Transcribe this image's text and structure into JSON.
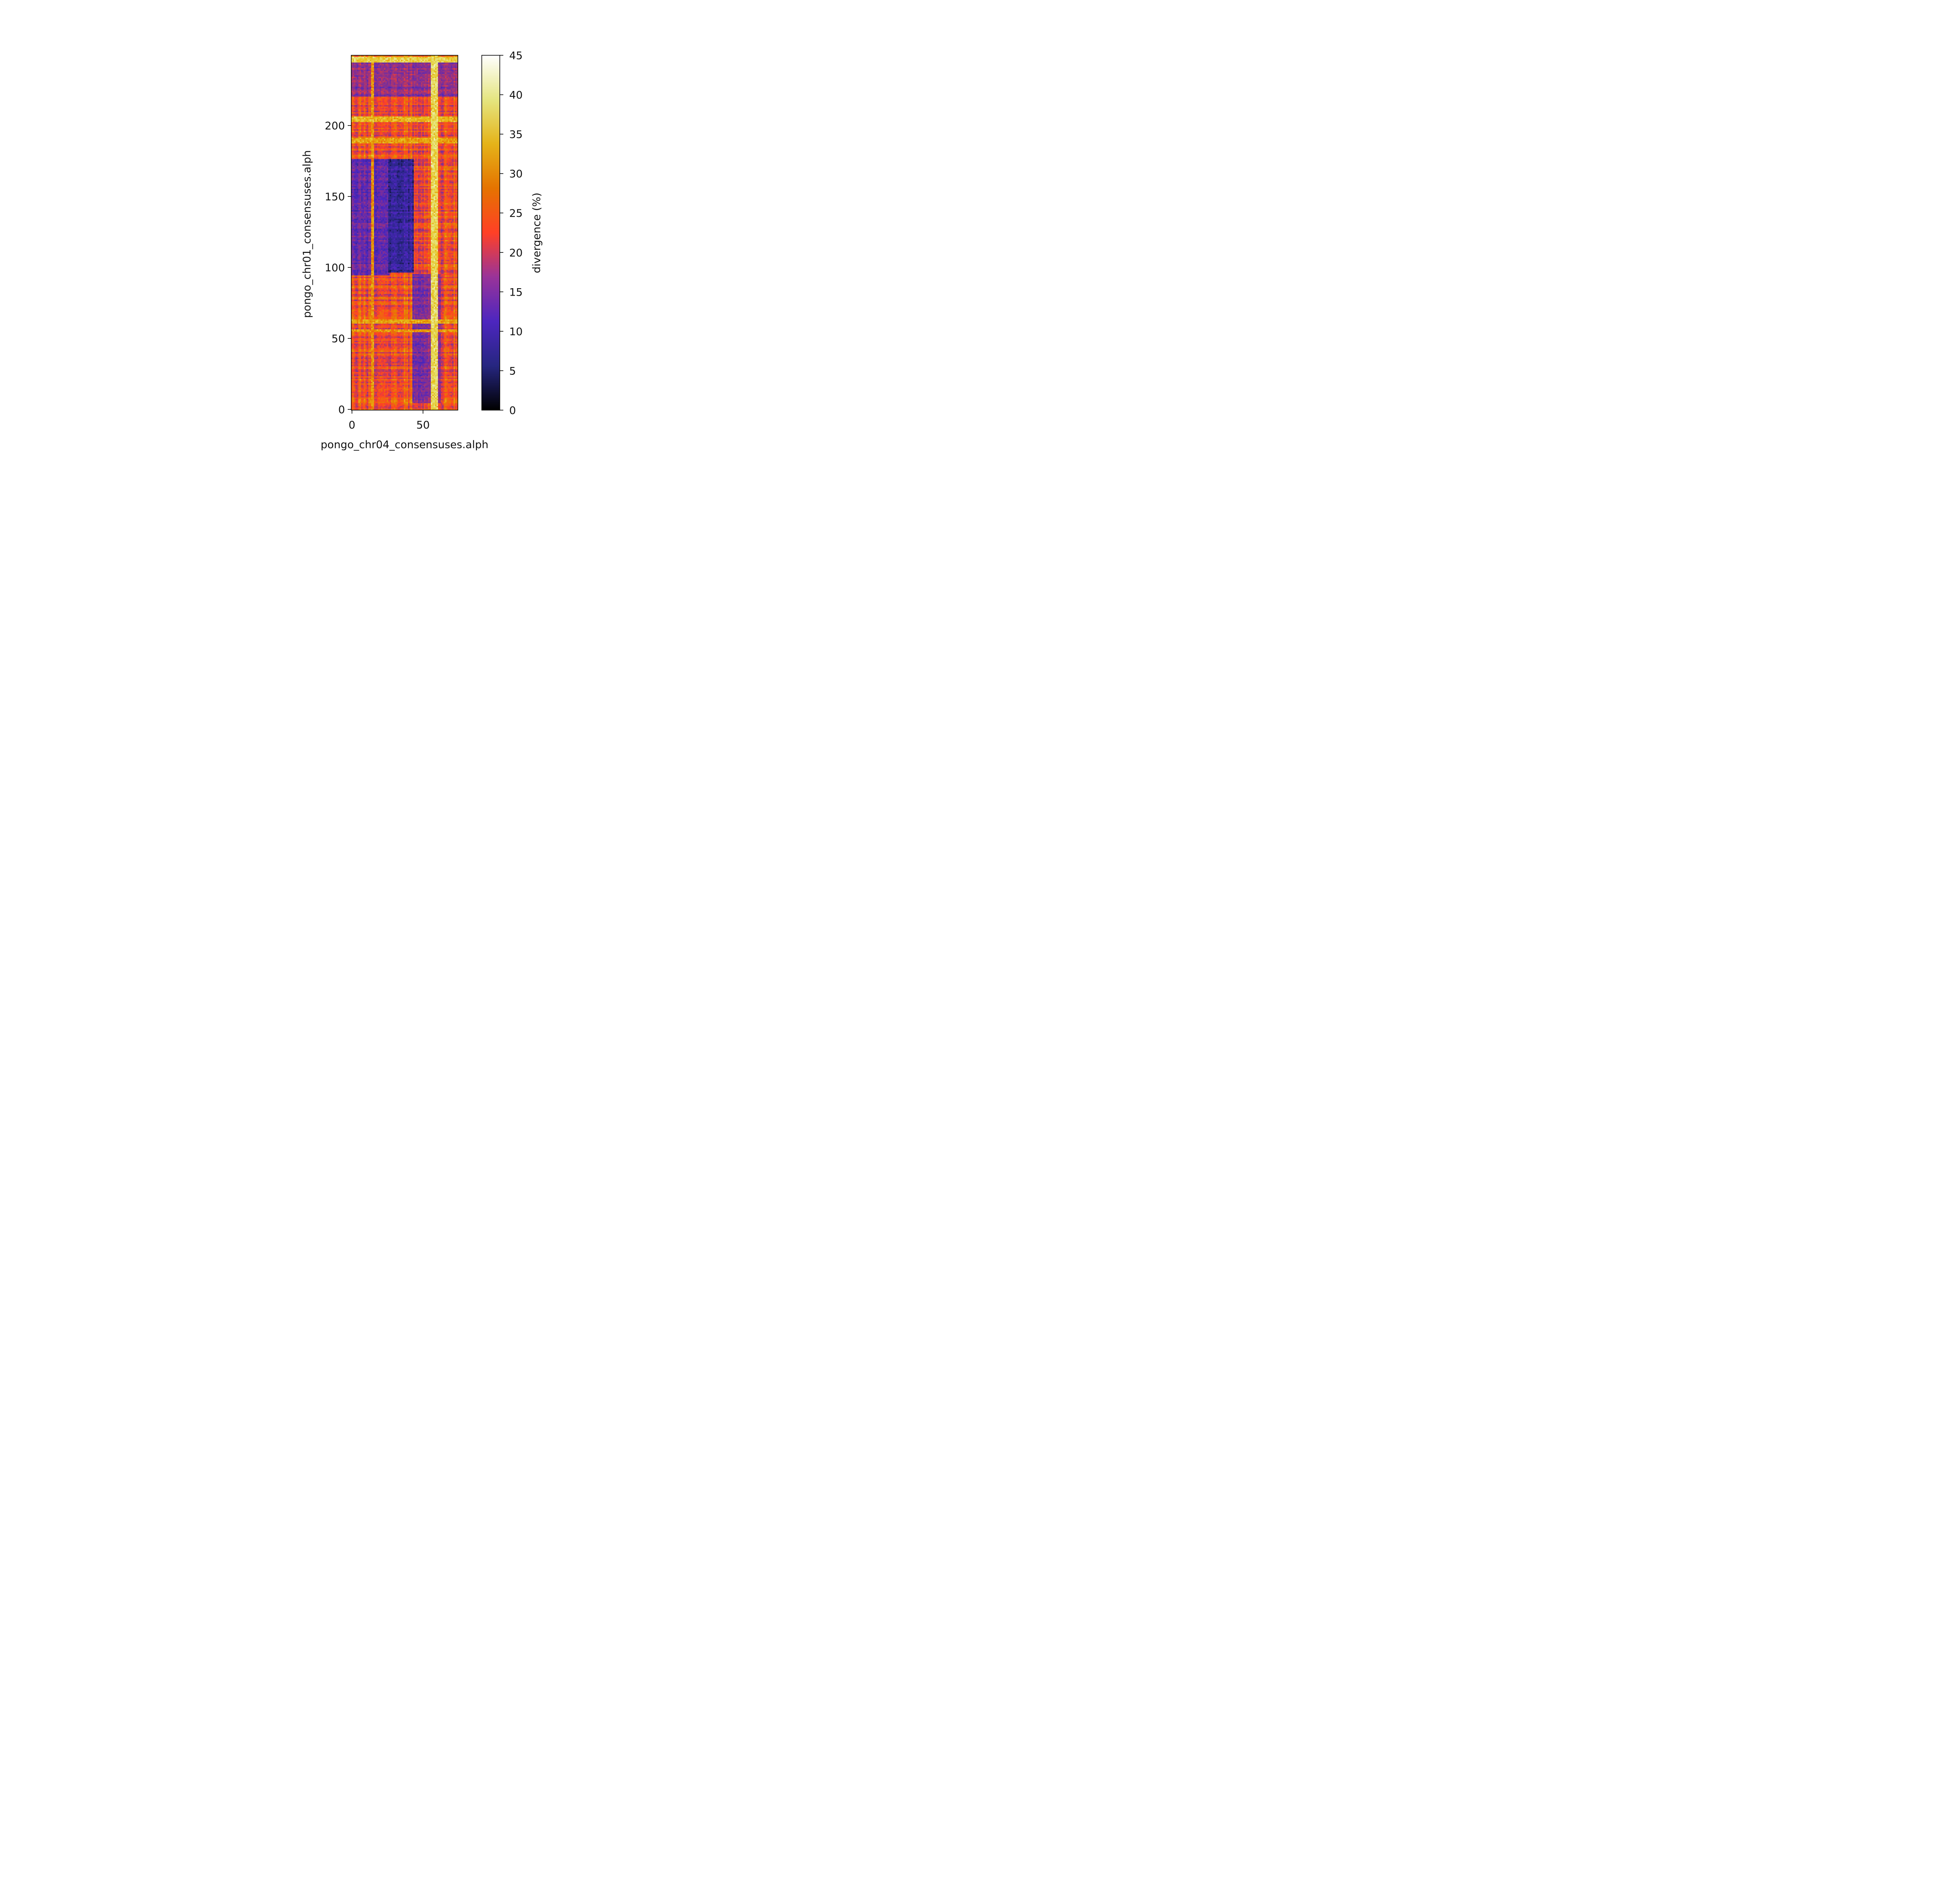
{
  "chart_data": {
    "type": "heatmap",
    "title": "",
    "xlabel": "pongo_chr04_consensuses.alph",
    "ylabel": "pongo_chr01_consensuses.alph",
    "x_range": [
      0,
      74
    ],
    "y_range": [
      0,
      249
    ],
    "xticks": [
      0,
      50
    ],
    "yticks": [
      0,
      50,
      100,
      150,
      200
    ],
    "colorbar": {
      "label": "divergence (%)",
      "colormap": "CMRmap",
      "range": [
        0,
        45
      ],
      "ticks": [
        0,
        5,
        10,
        15,
        20,
        25,
        30,
        35,
        40,
        45
      ]
    },
    "value_pattern": {
      "background_divergence": 23,
      "low_divergence_blocks": [
        {
          "x": [
            26,
            43
          ],
          "y": [
            97,
            176
          ],
          "divergence": 8
        },
        {
          "x": [
            0,
            26
          ],
          "y": [
            95,
            176
          ],
          "divergence": 13
        },
        {
          "x": [
            43,
            62
          ],
          "y": [
            5,
            95
          ],
          "divergence": 15
        },
        {
          "x": [
            0,
            74
          ],
          "y": [
            221,
            245
          ],
          "divergence": 16
        }
      ],
      "high_divergence_columns": [
        {
          "x": [
            56,
            60
          ],
          "divergence": 37
        },
        {
          "x": [
            14,
            15
          ],
          "divergence": 30
        }
      ],
      "high_divergence_rows": [
        {
          "y": [
            245,
            248
          ],
          "divergence": 36
        },
        {
          "y": [
            203,
            206
          ],
          "divergence": 33
        },
        {
          "y": [
            188,
            191
          ],
          "divergence": 31
        },
        {
          "y": [
            61,
            63
          ],
          "divergence": 31
        },
        {
          "y": [
            55,
            56
          ],
          "divergence": 30
        }
      ]
    }
  }
}
